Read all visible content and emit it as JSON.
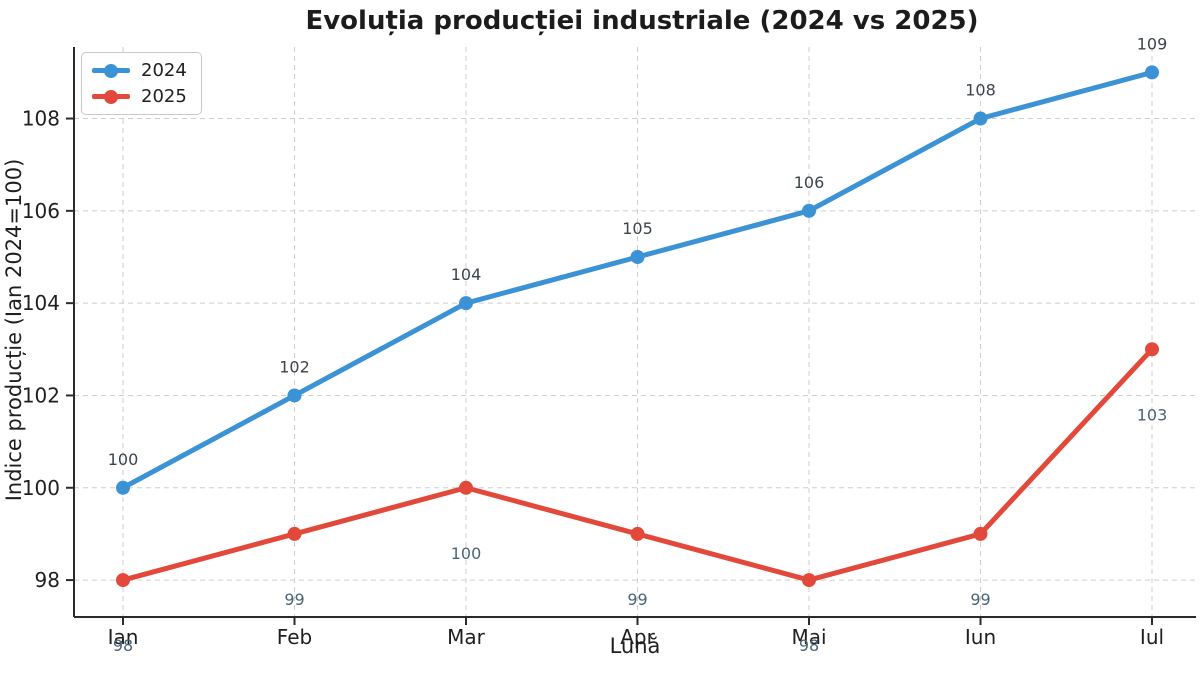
{
  "chart_data": {
    "type": "line",
    "title": "Evoluția producției industriale (2024 vs 2025)",
    "xlabel": "Lună",
    "ylabel": "Indice producție (Ian 2024=100)",
    "categories": [
      "Ian",
      "Feb",
      "Mar",
      "Apr",
      "Mai",
      "Iun",
      "Iul"
    ],
    "series": [
      {
        "name": "2024",
        "color": "#3b92d5",
        "label_color": "#3d434d",
        "labels_position": "above",
        "values": [
          100,
          102,
          104,
          105,
          106,
          108,
          109
        ]
      },
      {
        "name": "2025",
        "color": "#e3493b",
        "label_color": "#4c6377",
        "labels_position": "below",
        "values": [
          98,
          99,
          100,
          99,
          98,
          99,
          103
        ]
      }
    ],
    "yticks": [
      98,
      100,
      102,
      104,
      106,
      108
    ],
    "ylim": [
      97.2,
      109.55
    ],
    "grid": true,
    "grid_style": "dashed",
    "legend_position": "upper-left",
    "colors": {
      "axis": "#2b2b2b",
      "grid": "#cdcdcd",
      "tick_text": "#1f1f1f",
      "background": "#ffffff"
    }
  }
}
